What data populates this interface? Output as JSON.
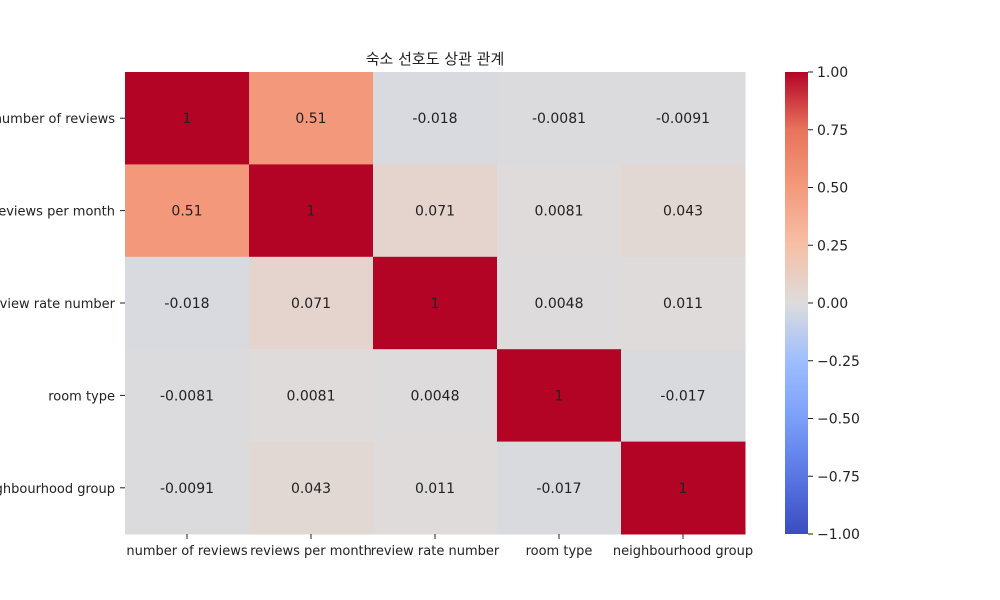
{
  "chart_data": {
    "type": "heatmap",
    "title": "숙소 선호도 상관 관계",
    "rows": [
      "number of reviews",
      "reviews per month",
      "review rate number",
      "room type",
      "neighbourhood group"
    ],
    "columns": [
      "number of reviews",
      "reviews per month",
      "review rate number",
      "room type",
      "neighbourhood group"
    ],
    "values": [
      [
        1,
        0.51,
        -0.018,
        -0.0081,
        -0.0091
      ],
      [
        0.51,
        1,
        0.071,
        0.0081,
        0.043
      ],
      [
        -0.018,
        0.071,
        1,
        0.0048,
        0.011
      ],
      [
        -0.0081,
        0.0081,
        0.0048,
        1,
        -0.017
      ],
      [
        -0.0091,
        0.043,
        0.011,
        -0.017,
        1
      ]
    ],
    "cell_labels": [
      [
        "1",
        "0.51",
        "-0.018",
        "-0.0081",
        "-0.0091"
      ],
      [
        "0.51",
        "1",
        "0.071",
        "0.0081",
        "0.043"
      ],
      [
        "-0.018",
        "0.071",
        "1",
        "0.0048",
        "0.011"
      ],
      [
        "-0.0081",
        "0.0081",
        "0.0048",
        "1",
        "-0.017"
      ],
      [
        "-0.0091",
        "0.043",
        "0.011",
        "-0.017",
        "1"
      ]
    ],
    "colormap": "coolwarm",
    "vmin": -1,
    "vmax": 1,
    "colorbar_ticks": [
      "1.00",
      "0.75",
      "0.50",
      "0.25",
      "0.00",
      "−0.25",
      "−0.50",
      "−0.75",
      "−1.00"
    ],
    "colorbar_tick_values": [
      1,
      0.75,
      0.5,
      0.25,
      0,
      -0.25,
      -0.5,
      -0.75,
      -1
    ]
  }
}
